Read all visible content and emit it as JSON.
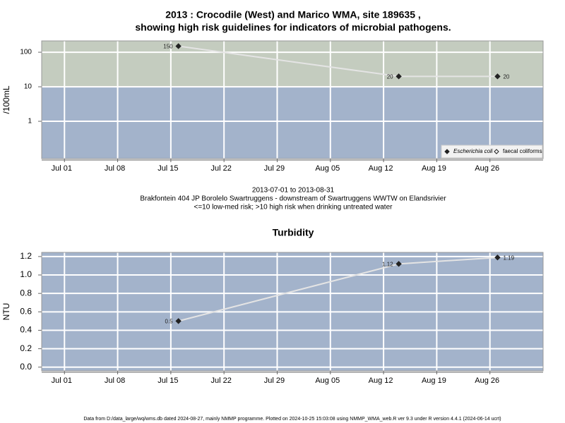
{
  "chart_data": [
    {
      "type": "line",
      "title_lines": [
        "2013 : Crocodile (West) and Marico WMA, site 189635 ,",
        "showing high risk guidelines for indicators of microbial pathogens."
      ],
      "ylabel": "/100mL",
      "log": true,
      "x": [
        "2013-07-16",
        "2013-08-14",
        "2013-08-27"
      ],
      "xlim": [
        "2013-06-28",
        "2013-09-02"
      ],
      "xticks": [
        {
          "value": "2013-07-01",
          "label": "Jul 01"
        },
        {
          "value": "2013-07-08",
          "label": "Jul 08"
        },
        {
          "value": "2013-07-15",
          "label": "Jul 15"
        },
        {
          "value": "2013-07-22",
          "label": "Jul 22"
        },
        {
          "value": "2013-07-29",
          "label": "Jul 29"
        },
        {
          "value": "2013-08-05",
          "label": "Aug 05"
        },
        {
          "value": "2013-08-12",
          "label": "Aug 12"
        },
        {
          "value": "2013-08-19",
          "label": "Aug 19"
        },
        {
          "value": "2013-08-26",
          "label": "Aug 26"
        }
      ],
      "ylim": [
        0.083,
        213
      ],
      "yticks": [
        1,
        10,
        100
      ],
      "threshold": 10,
      "below_color": "#a3b3cb",
      "above_color": "#c4ccbf",
      "grid": true,
      "legend": "bottom-right",
      "series": [
        {
          "name": "Escherichia coli",
          "color": "#222222",
          "marker": "filled",
          "name_style": "italic",
          "values": [
            150,
            20,
            20
          ]
        },
        {
          "name": "faecal coliforms",
          "color": "#222222",
          "marker": "open",
          "values": [
            null,
            null,
            null
          ]
        }
      ],
      "caption": [
        "2013-07-01 to 2013-08-31",
        "Brakfontein 404 JP Borolelo Swartruggens - downstream of Swartruggens WWTW on Elandsrivier",
        "<=10 low-med risk; >10 high risk when drinking untreated water"
      ]
    },
    {
      "type": "line",
      "title_lines": [
        "Turbidity"
      ],
      "ylabel": "NTU",
      "log": false,
      "x": [
        "2013-07-16",
        "2013-08-14",
        "2013-08-27"
      ],
      "xlim": [
        "2013-06-28",
        "2013-09-02"
      ],
      "xticks": [
        {
          "value": "2013-07-01",
          "label": "Jul 01"
        },
        {
          "value": "2013-07-08",
          "label": "Jul 08"
        },
        {
          "value": "2013-07-15",
          "label": "Jul 15"
        },
        {
          "value": "2013-07-22",
          "label": "Jul 22"
        },
        {
          "value": "2013-07-29",
          "label": "Jul 29"
        },
        {
          "value": "2013-08-05",
          "label": "Aug 05"
        },
        {
          "value": "2013-08-12",
          "label": "Aug 12"
        },
        {
          "value": "2013-08-19",
          "label": "Aug 19"
        },
        {
          "value": "2013-08-26",
          "label": "Aug 26"
        }
      ],
      "ylim": [
        -0.04,
        1.245
      ],
      "yticks": [
        {
          "value": 0,
          "label": "0.0"
        },
        0.2,
        0.4,
        0.6,
        0.8,
        {
          "value": 1,
          "label": "1.0"
        },
        1.2
      ],
      "below_color": "#a3b3cb",
      "grid": true,
      "series": [
        {
          "name": "Turbidity",
          "color": "#222222",
          "marker": "filled",
          "values": [
            0.5,
            1.12,
            1.19
          ]
        }
      ]
    }
  ],
  "footer": "Data from D:/data_large/wq/wms.db dated 2024-08-27, mainly NMMP programme. Plotted on 2024-10-25 15:03:08 using NMMP_WMA_web.R ver 9.3 under R version 4.4.1 (2024-06-14 ucrt)"
}
